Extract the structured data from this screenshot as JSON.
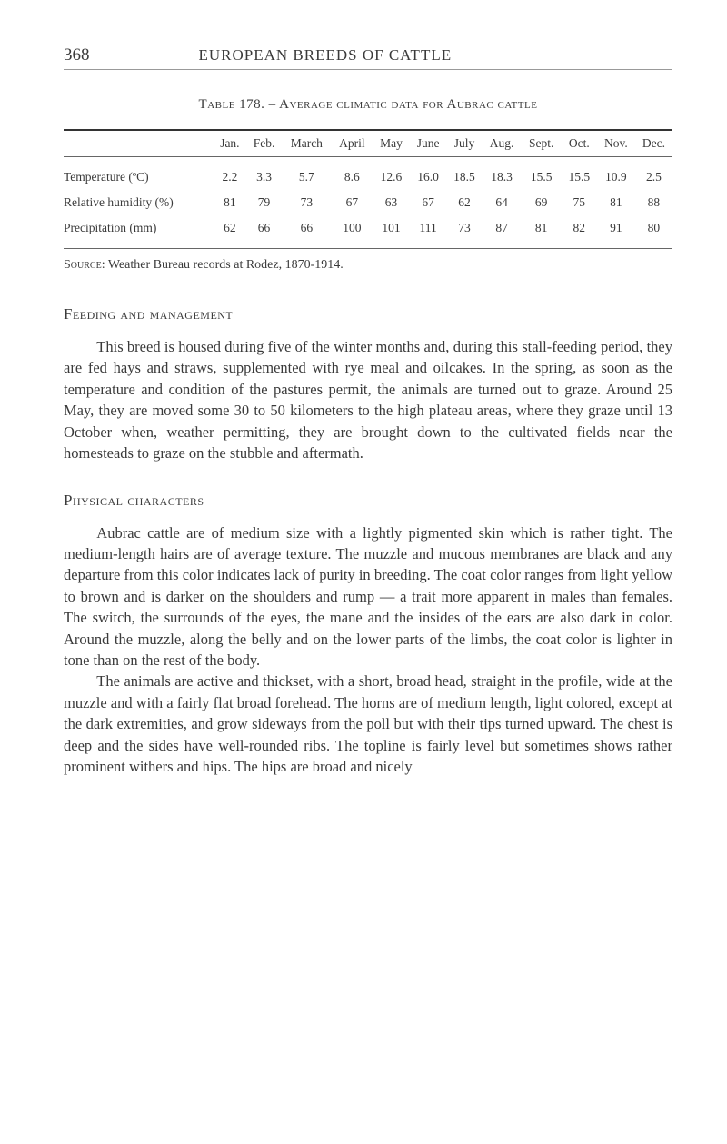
{
  "header": {
    "page_number": "368",
    "running_title": "EUROPEAN BREEDS OF CATTLE"
  },
  "table": {
    "caption_prefix": "Table 178. – ",
    "caption_text": "Average climatic data for Aubrac cattle",
    "columns": [
      "",
      "Jan.",
      "Feb.",
      "March",
      "April",
      "May",
      "June",
      "July",
      "Aug.",
      "Sept.",
      "Oct.",
      "Nov.",
      "Dec."
    ],
    "rows": [
      {
        "label": "Temperature (ºC)",
        "values": [
          "2.2",
          "3.3",
          "5.7",
          "8.6",
          "12.6",
          "16.0",
          "18.5",
          "18.3",
          "15.5",
          "15.5",
          "10.9",
          "2.5"
        ]
      },
      {
        "label": "Relative humid­ity (%)",
        "values": [
          "81",
          "79",
          "73",
          "67",
          "63",
          "67",
          "62",
          "64",
          "69",
          "75",
          "81",
          "88"
        ]
      },
      {
        "label": "Precipitation (mm)",
        "values": [
          "62",
          "66",
          "66",
          "100",
          "101",
          "111",
          "73",
          "87",
          "81",
          "82",
          "91",
          "80"
        ]
      }
    ],
    "source_label": "Source",
    "source_text": ": Weather Bureau records at Rodez, 1870-1914."
  },
  "sections": [
    {
      "heading": "Feeding and management",
      "paragraphs": [
        "This breed is housed during five of the winter months and, during this stall-feeding period, they are fed hays and straws, sup­plemented with rye meal and oilcakes. In the spring, as soon as the temperature and condition of the pastures permit, the animals are turned out to graze. Around 25 May, they are moved some 30 to 50 kilometers to the high plateau areas, where they graze until 13 October when, weather permitting, they are brought down to the cultivated fields near the homesteads to graze on the stubble and aftermath."
      ]
    },
    {
      "heading": "Physical characters",
      "paragraphs": [
        "Aubrac cattle are of medium size with a lightly pigmented skin which is rather tight. The medium-length hairs are of average texture. The muzzle and mucous membranes are black and any departure from this color indicates lack of purity in breeding. The coat color ranges from light yellow to brown and is darker on the shoulders and rump — a trait more apparent in males than females. The switch, the surrounds of the eyes, the mane and the insides of the ears are also dark in color. Around the muzzle, along the belly and on the lower parts of the limbs, the coat color is lighter in tone than on the rest of the body.",
        "The animals are active and thickset, with a short, broad head, straight in the profile, wide at the muzzle and with a fairly flat broad forehead. The horns are of medium length, light colored, except at the dark extremities, and grow sideways from the poll but with their tips turned upward. The chest is deep and the sides have well-rounded ribs. The topline is fairly level but sometimes shows rather prominent withers and hips. The hips are broad and nicely"
      ]
    }
  ]
}
